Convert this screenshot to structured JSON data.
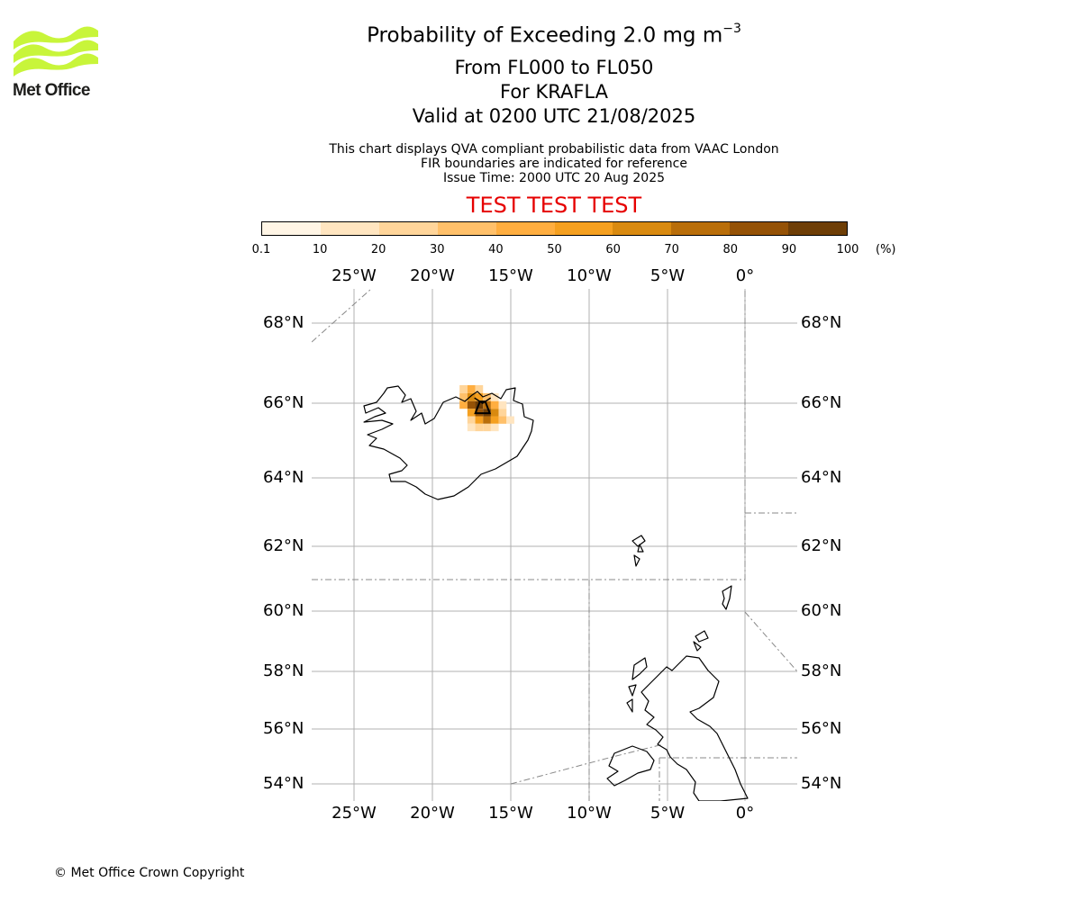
{
  "logo": {
    "text": "Met Office",
    "icon": "met-office-wave-logo",
    "color": "#c8f53a"
  },
  "title": {
    "line1_prefix": "Probability of Exceeding 2.0 mg m",
    "line1_exponent": "−3",
    "line2": "From FL000 to FL050",
    "line3": "For KRAFLA",
    "line4": "Valid at 0200 UTC 21/08/2025"
  },
  "notes": {
    "line1": "This chart displays QVA compliant probabilistic data from VAAC London",
    "line2": "FIR boundaries are indicated for reference",
    "line3": "Issue Time: 2000 UTC 20 Aug 2025"
  },
  "banner": "TEST TEST TEST",
  "colorbar": {
    "ticks": [
      "0.1",
      "10",
      "20",
      "30",
      "40",
      "50",
      "60",
      "70",
      "80",
      "90",
      "100"
    ],
    "unit": "(%)",
    "colors": [
      "#fff5e5",
      "#ffe5c0",
      "#ffd59a",
      "#ffc06a",
      "#ffae40",
      "#f5a020",
      "#d98a10",
      "#b96e0a",
      "#955206",
      "#6e3e06"
    ]
  },
  "map": {
    "lon_labels": [
      "25°W",
      "20°W",
      "15°W",
      "10°W",
      "5°W",
      "0°"
    ],
    "lat_labels": [
      "68°N",
      "66°N",
      "64°N",
      "62°N",
      "60°N",
      "58°N",
      "56°N",
      "54°N"
    ],
    "volcano": "KRAFLA",
    "volcano_icon": "volcano-marker-icon",
    "probability_cells": [
      {
        "lon": -18.0,
        "lat": 66.35,
        "prob": 20
      },
      {
        "lon": -17.5,
        "lat": 66.35,
        "prob": 45
      },
      {
        "lon": -17.0,
        "lat": 66.35,
        "prob": 25
      },
      {
        "lon": -18.0,
        "lat": 66.15,
        "prob": 30
      },
      {
        "lon": -17.5,
        "lat": 66.15,
        "prob": 65
      },
      {
        "lon": -17.0,
        "lat": 66.15,
        "prob": 55
      },
      {
        "lon": -16.5,
        "lat": 66.15,
        "prob": 30
      },
      {
        "lon": -16.0,
        "lat": 66.15,
        "prob": 15
      },
      {
        "lon": -18.0,
        "lat": 65.95,
        "prob": 40
      },
      {
        "lon": -17.5,
        "lat": 65.95,
        "prob": 85
      },
      {
        "lon": -17.0,
        "lat": 65.95,
        "prob": 95
      },
      {
        "lon": -16.5,
        "lat": 65.95,
        "prob": 75
      },
      {
        "lon": -16.0,
        "lat": 65.95,
        "prob": 45
      },
      {
        "lon": -15.5,
        "lat": 65.95,
        "prob": 15
      },
      {
        "lon": -17.5,
        "lat": 65.75,
        "prob": 50
      },
      {
        "lon": -17.0,
        "lat": 65.75,
        "prob": 85
      },
      {
        "lon": -16.5,
        "lat": 65.75,
        "prob": 95
      },
      {
        "lon": -16.0,
        "lat": 65.75,
        "prob": 65
      },
      {
        "lon": -15.5,
        "lat": 65.75,
        "prob": 25
      },
      {
        "lon": -17.5,
        "lat": 65.55,
        "prob": 25
      },
      {
        "lon": -17.0,
        "lat": 65.55,
        "prob": 55
      },
      {
        "lon": -16.5,
        "lat": 65.55,
        "prob": 75
      },
      {
        "lon": -16.0,
        "lat": 65.55,
        "prob": 55
      },
      {
        "lon": -15.5,
        "lat": 65.55,
        "prob": 35
      },
      {
        "lon": -15.0,
        "lat": 65.55,
        "prob": 15
      },
      {
        "lon": -17.5,
        "lat": 65.35,
        "prob": 10
      },
      {
        "lon": -17.0,
        "lat": 65.35,
        "prob": 25
      },
      {
        "lon": -16.5,
        "lat": 65.35,
        "prob": 20
      },
      {
        "lon": -16.0,
        "lat": 65.35,
        "prob": 10
      }
    ]
  },
  "copyright": "© Met Office Crown Copyright"
}
